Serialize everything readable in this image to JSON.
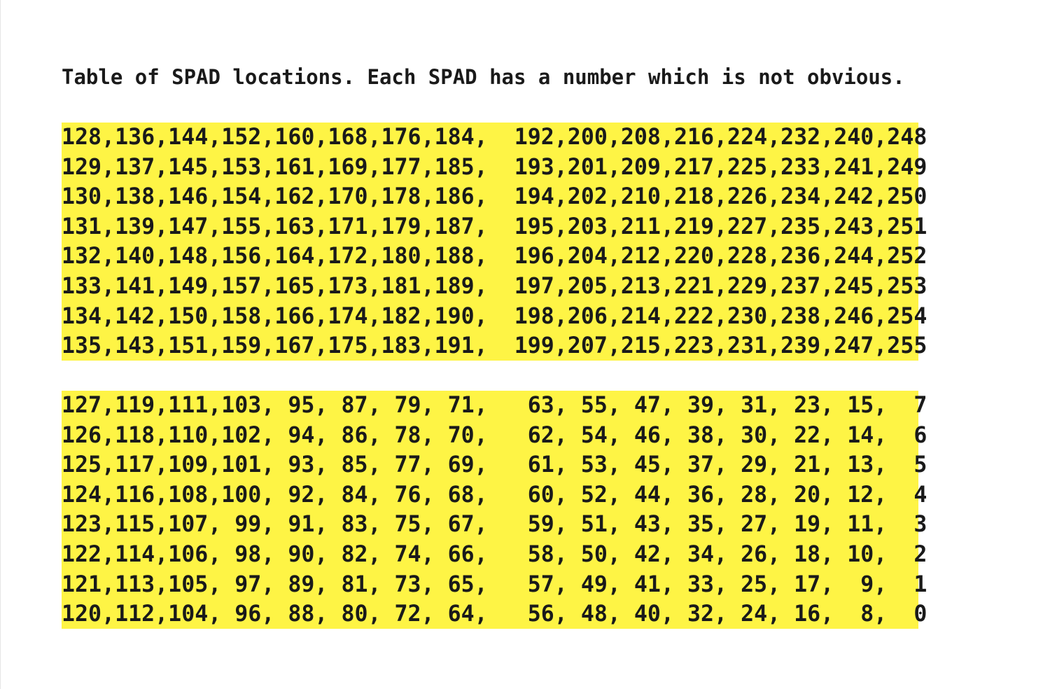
{
  "caption": "Table of SPAD locations. Each SPAD has a number which is not obvious.",
  "top_block": {
    "rows": [
      "128,136,144,152,160,168,176,184,  192,200,208,216,224,232,240,248",
      "129,137,145,153,161,169,177,185,  193,201,209,217,225,233,241,249",
      "130,138,146,154,162,170,178,186,  194,202,210,218,226,234,242,250",
      "131,139,147,155,163,171,179,187,  195,203,211,219,227,235,243,251",
      "132,140,148,156,164,172,180,188,  196,204,212,220,228,236,244,252",
      "133,141,149,157,165,173,181,189,  197,205,213,221,229,237,245,253",
      "134,142,150,158,166,174,182,190,  198,206,214,222,230,238,246,254",
      "135,143,151,159,167,175,183,191,  199,207,215,223,231,239,247,255"
    ]
  },
  "bottom_block": {
    "rows": [
      "127,119,111,103, 95, 87, 79, 71,   63, 55, 47, 39, 31, 23, 15,  7",
      "126,118,110,102, 94, 86, 78, 70,   62, 54, 46, 38, 30, 22, 14,  6",
      "125,117,109,101, 93, 85, 77, 69,   61, 53, 45, 37, 29, 21, 13,  5",
      "124,116,108,100, 92, 84, 76, 68,   60, 52, 44, 36, 28, 20, 12,  4",
      "123,115,107, 99, 91, 83, 75, 67,   59, 51, 43, 35, 27, 19, 11,  3",
      "122,114,106, 98, 90, 82, 74, 66,   58, 50, 42, 34, 26, 18, 10,  2",
      "121,113,105, 97, 89, 81, 73, 65,   57, 49, 41, 33, 25, 17,  9,  1",
      "120,112,104, 96, 88, 80, 72, 64,   56, 48, 40, 32, 24, 16,  8,  0"
    ]
  },
  "colors": {
    "highlight": "#fef445",
    "text": "#1a1a1a",
    "background": "#ffffff"
  }
}
